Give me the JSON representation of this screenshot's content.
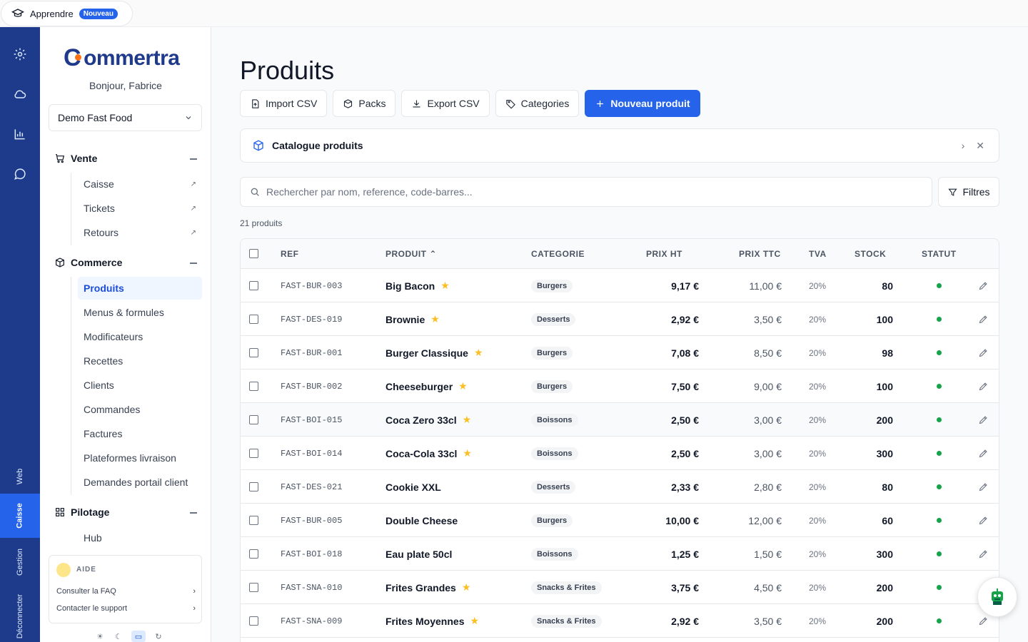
{
  "topbar": {
    "learn_label": "Apprendre",
    "new_badge": "Nouveau"
  },
  "rail": {
    "tabs": [
      "Web",
      "Caisse",
      "Gestion",
      "Déconnecter"
    ],
    "active_tab": "Caisse"
  },
  "sidebar": {
    "logo_text": "ommertra",
    "greeting": "Bonjour, Fabrice",
    "store": "Demo Fast Food",
    "sections": [
      {
        "title": "Vente",
        "items": [
          "Caisse",
          "Tickets",
          "Retours"
        ]
      },
      {
        "title": "Commerce",
        "items": [
          "Produits",
          "Menus & formules",
          "Modificateurs",
          "Recettes",
          "Clients",
          "Commandes",
          "Factures",
          "Plateformes livraison",
          "Demandes portail client"
        ]
      },
      {
        "title": "Pilotage",
        "items": [
          "Hub"
        ]
      }
    ],
    "active_item": "Produits",
    "help": {
      "title": "AIDE",
      "faq": "Consulter la FAQ",
      "support": "Contacter le support"
    }
  },
  "main": {
    "title": "Produits",
    "toolbar": {
      "import": "Import CSV",
      "packs": "Packs",
      "export": "Export CSV",
      "categories": "Categories",
      "new": "Nouveau produit"
    },
    "banner": "Catalogue produits",
    "search_placeholder": "Rechercher par nom, reference, code-barres...",
    "filters": "Filtres",
    "count": "21 produits",
    "columns": {
      "ref": "REF",
      "product": "PRODUIT",
      "category": "CATEGORIE",
      "price_ht": "PRIX HT",
      "price_ttc": "PRIX TTC",
      "vat": "TVA",
      "stock": "STOCK",
      "status": "STATUT"
    },
    "rows": [
      {
        "ref": "FAST-BUR-003",
        "name": "Big Bacon",
        "fav": true,
        "cat": "Burgers",
        "ht": "9,17 €",
        "ttc": "11,00 €",
        "tva": "20%",
        "stock": "80"
      },
      {
        "ref": "FAST-DES-019",
        "name": "Brownie",
        "fav": true,
        "cat": "Desserts",
        "ht": "2,92 €",
        "ttc": "3,50 €",
        "tva": "20%",
        "stock": "100"
      },
      {
        "ref": "FAST-BUR-001",
        "name": "Burger Classique",
        "fav": true,
        "cat": "Burgers",
        "ht": "7,08 €",
        "ttc": "8,50 €",
        "tva": "20%",
        "stock": "98"
      },
      {
        "ref": "FAST-BUR-002",
        "name": "Cheeseburger",
        "fav": true,
        "cat": "Burgers",
        "ht": "7,50 €",
        "ttc": "9,00 €",
        "tva": "20%",
        "stock": "100"
      },
      {
        "ref": "FAST-BOI-015",
        "name": "Coca Zero 33cl",
        "fav": true,
        "cat": "Boissons",
        "ht": "2,50 €",
        "ttc": "3,00 €",
        "tva": "20%",
        "stock": "200"
      },
      {
        "ref": "FAST-BOI-014",
        "name": "Coca-Cola 33cl",
        "fav": true,
        "cat": "Boissons",
        "ht": "2,50 €",
        "ttc": "3,00 €",
        "tva": "20%",
        "stock": "300"
      },
      {
        "ref": "FAST-DES-021",
        "name": "Cookie XXL",
        "fav": false,
        "cat": "Desserts",
        "ht": "2,33 €",
        "ttc": "2,80 €",
        "tva": "20%",
        "stock": "80"
      },
      {
        "ref": "FAST-BUR-005",
        "name": "Double Cheese",
        "fav": false,
        "cat": "Burgers",
        "ht": "10,00 €",
        "ttc": "12,00 €",
        "tva": "20%",
        "stock": "60"
      },
      {
        "ref": "FAST-BOI-018",
        "name": "Eau plate 50cl",
        "fav": false,
        "cat": "Boissons",
        "ht": "1,25 €",
        "ttc": "1,50 €",
        "tva": "20%",
        "stock": "300"
      },
      {
        "ref": "FAST-SNA-010",
        "name": "Frites Grandes",
        "fav": true,
        "cat": "Snacks & Frites",
        "ht": "3,75 €",
        "ttc": "4,50 €",
        "tva": "20%",
        "stock": "200"
      },
      {
        "ref": "FAST-SNA-009",
        "name": "Frites Moyennes",
        "fav": true,
        "cat": "Snacks & Frites",
        "ht": "2,92 €",
        "ttc": "3,50 €",
        "tva": "20%",
        "stock": "200"
      }
    ]
  },
  "colors": {
    "primary": "#2563eb",
    "rail": "#1e3a8a",
    "status_active": "#16a34a",
    "star": "#fbbf24",
    "logo_dot": "#f97316"
  }
}
